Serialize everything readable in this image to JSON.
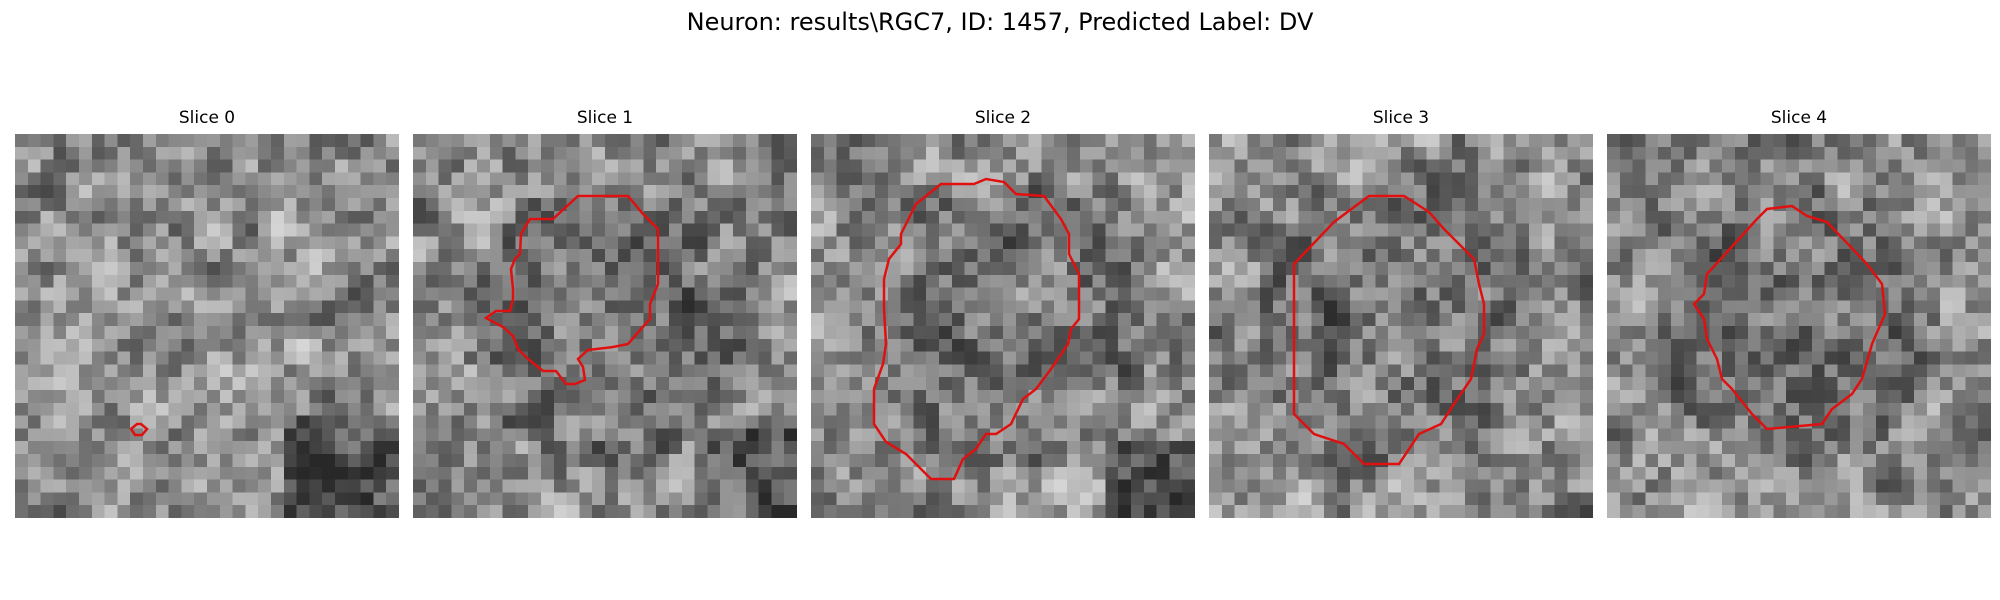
{
  "figure": {
    "title": "Neuron: results\\RGC7, ID: 1457, Predicted Label: DV"
  },
  "panels": [
    {
      "title": "Slice 0",
      "seed": 11,
      "contour_color": "#e01010"
    },
    {
      "title": "Slice 1",
      "seed": 23,
      "contour_color": "#e01010"
    },
    {
      "title": "Slice 2",
      "seed": 37,
      "contour_color": "#e01010"
    },
    {
      "title": "Slice 3",
      "seed": 41,
      "contour_color": "#e01010"
    },
    {
      "title": "Slice 4",
      "seed": 53,
      "contour_color": "#e01010"
    }
  ]
}
